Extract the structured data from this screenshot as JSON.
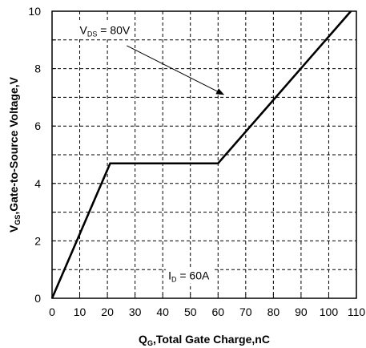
{
  "chart_data": {
    "type": "line",
    "xlabel": {
      "main": "Q",
      "sub": "G",
      "rest": ",Total Gate Charge,nC"
    },
    "ylabel": {
      "main": "V",
      "sub": "GS",
      "rest": ",Gate-to-Source Voltage,V"
    },
    "xlim": [
      0,
      110
    ],
    "ylim": [
      0,
      10
    ],
    "x_ticks": [
      0,
      10,
      20,
      30,
      40,
      50,
      60,
      70,
      80,
      90,
      100,
      110
    ],
    "y_ticks": [
      0,
      2,
      4,
      6,
      8,
      10
    ],
    "grid": true,
    "series": [
      {
        "x": [
          0,
          21,
          60,
          108
        ],
        "y": [
          0,
          4.7,
          4.7,
          10
        ]
      }
    ],
    "annotations": [
      {
        "main": "V",
        "sub": "DS",
        "rest": " = 80V",
        "x": 10,
        "y": 9.2,
        "arrow_from": [
          27,
          8.8
        ],
        "arrow_to": [
          62,
          7.1
        ]
      },
      {
        "main": "I",
        "sub": "D",
        "rest": " = 60A",
        "x": 42,
        "y": 0.65
      }
    ]
  }
}
